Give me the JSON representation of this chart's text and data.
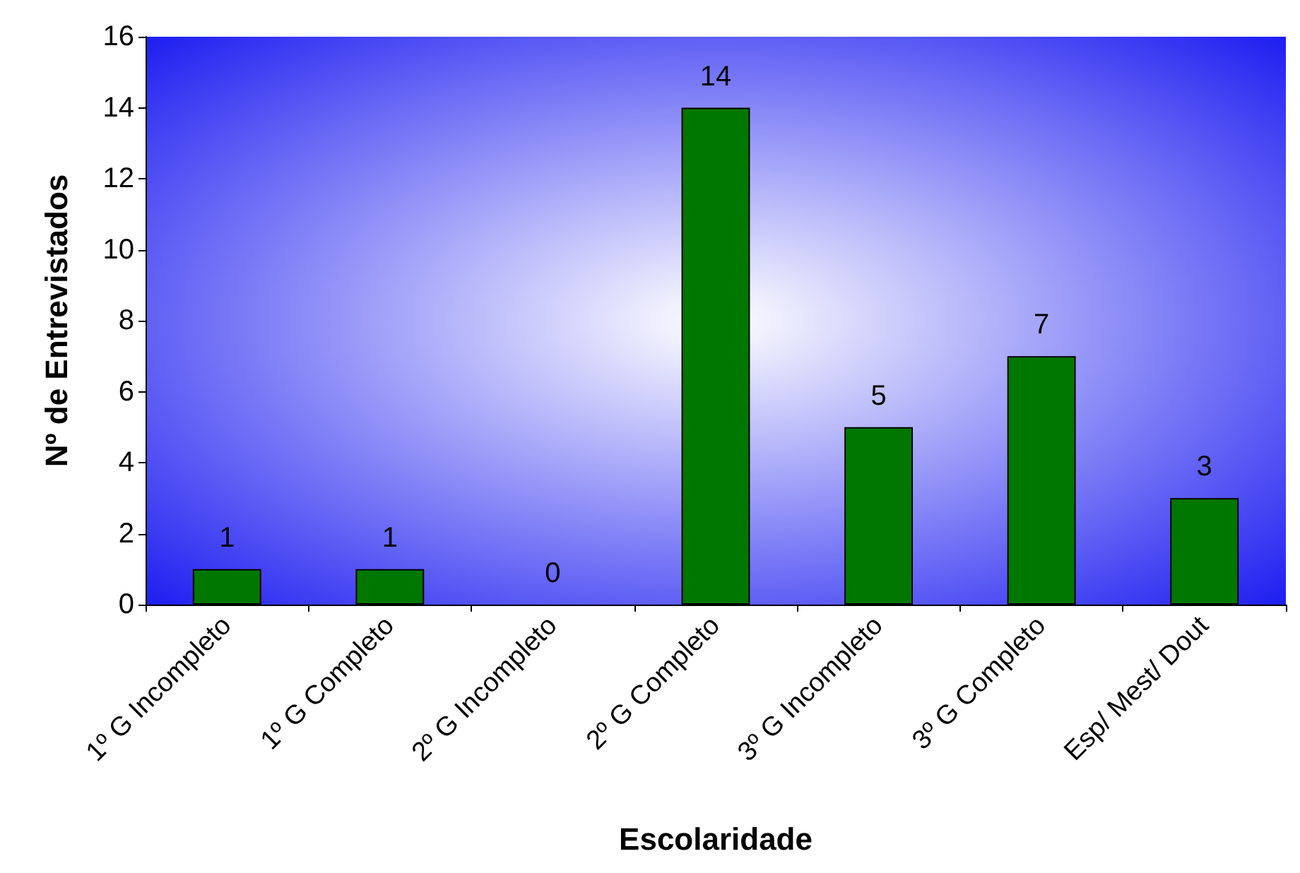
{
  "chart_data": {
    "type": "bar",
    "xlabel": "Escolaridade",
    "ylabel": "Nº de Entrevistados",
    "categories": [
      "1º G Incompleto",
      "1º G Completo",
      "2º G Incompleto",
      "2º G Completo",
      "3º G Incompleto",
      "3º G Completo",
      "Esp/ Mest/ Dout"
    ],
    "values": [
      1,
      1,
      0,
      14,
      5,
      7,
      3
    ],
    "color": "#007700",
    "ylim": [
      0,
      16
    ],
    "yticks": [
      0,
      2,
      4,
      6,
      8,
      10,
      12,
      14,
      16
    ],
    "grid": false,
    "data_labels": true
  }
}
